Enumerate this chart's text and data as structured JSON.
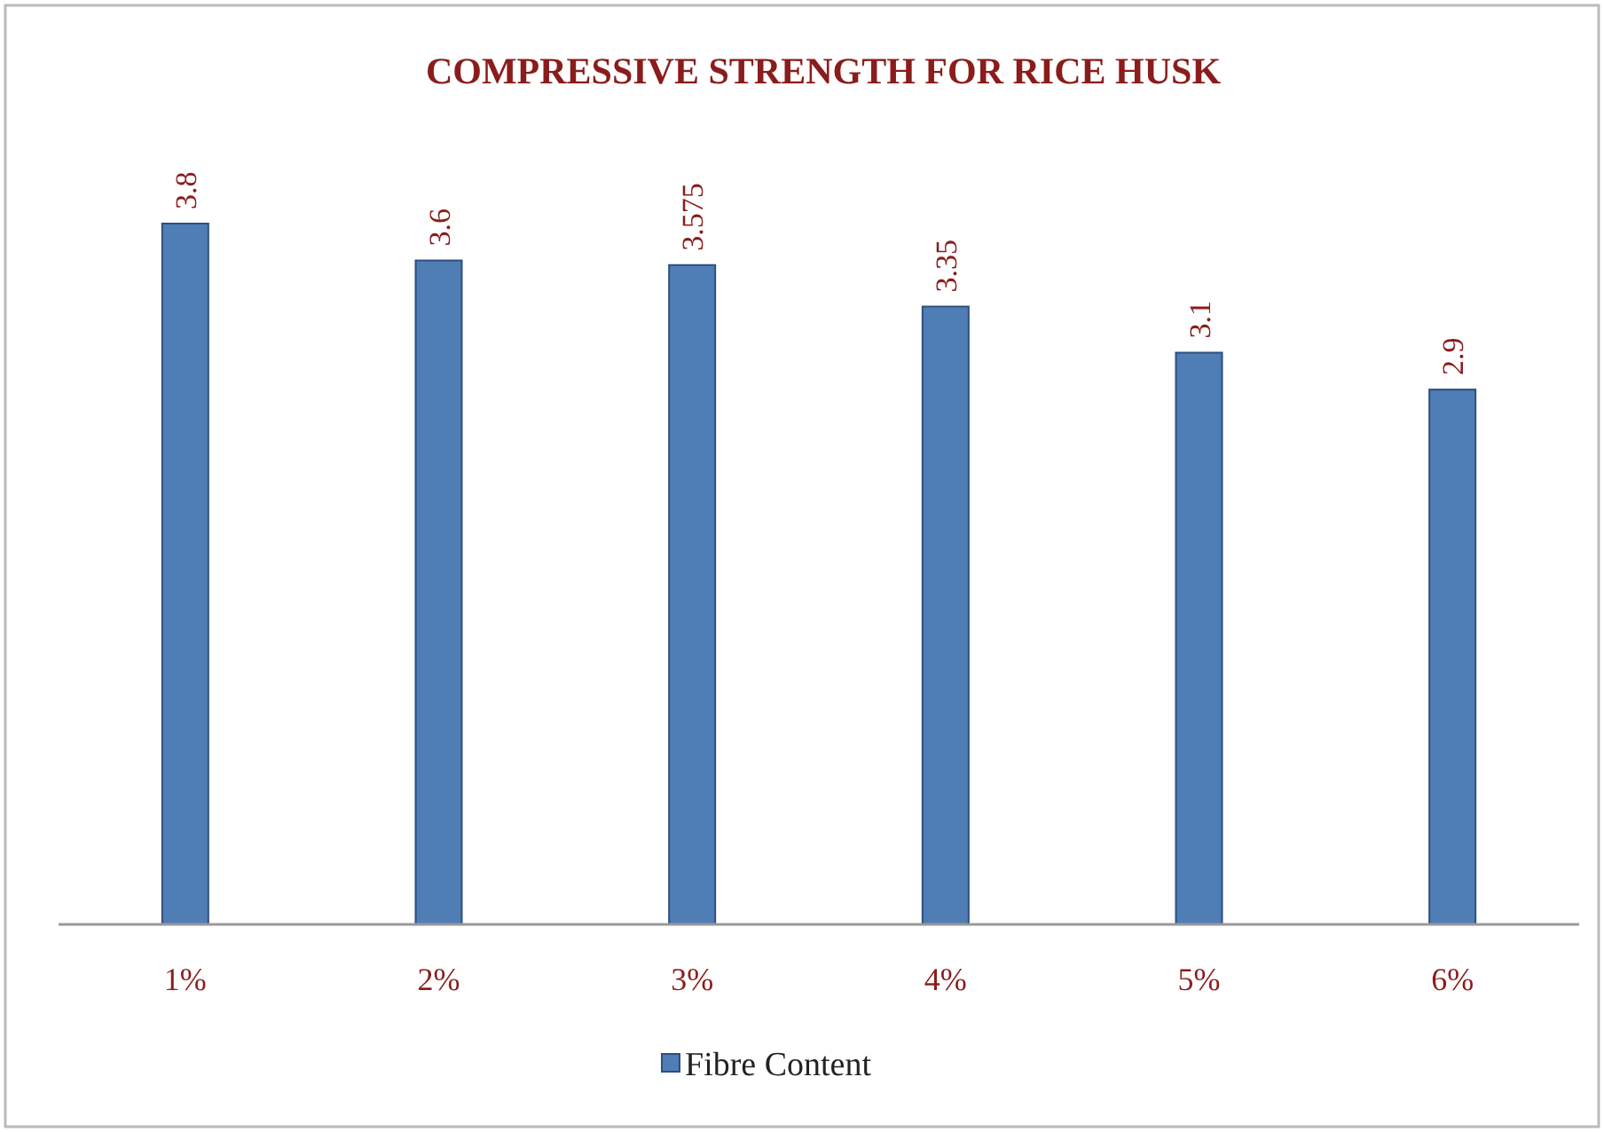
{
  "chart_data": {
    "type": "bar",
    "title": "COMPRESSIVE STRENGTH FOR RICE HUSK",
    "categories": [
      "1%",
      "2%",
      "3%",
      "4%",
      "5%",
      "6%"
    ],
    "series": [
      {
        "name": "Fibre Content",
        "color": "#4f7db5",
        "values": [
          3.8,
          3.6,
          3.575,
          3.35,
          3.1,
          2.9
        ]
      }
    ],
    "tick_labels": "x",
    "data_labels": true,
    "legend": "bottom",
    "grid": false
  }
}
